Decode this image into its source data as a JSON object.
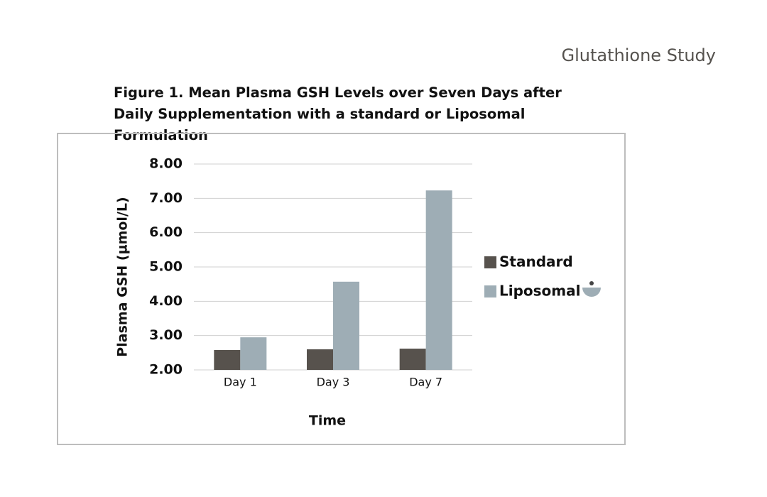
{
  "header": "Glutathione Study",
  "chart_data": {
    "type": "bar",
    "title": "Figure 1. Mean Plasma GSH Levels over Seven Days after Daily Supplementation with a standard or Liposomal Formulation",
    "x_label": "Time",
    "y_label": "Plasma GSH (µmol/L)",
    "categories": [
      "Day 1",
      "Day 3",
      "Day 7"
    ],
    "series": [
      {
        "name": "Standard",
        "color": "#57524d",
        "values": [
          2.58,
          2.6,
          2.62
        ]
      },
      {
        "name": "Liposomal",
        "color": "#9eadb5",
        "values": [
          2.95,
          4.57,
          7.23
        ]
      }
    ],
    "ylim": [
      2,
      8
    ],
    "yticks": [
      {
        "value": 2,
        "label": "2.00"
      },
      {
        "value": 3,
        "label": "3.00"
      },
      {
        "value": 4,
        "label": "4.00"
      },
      {
        "value": 5,
        "label": "5.00"
      },
      {
        "value": 6,
        "label": "6.00"
      },
      {
        "value": 7,
        "label": "7.00"
      },
      {
        "value": 8,
        "label": "8.00"
      }
    ],
    "grid": true,
    "legend": "right"
  }
}
